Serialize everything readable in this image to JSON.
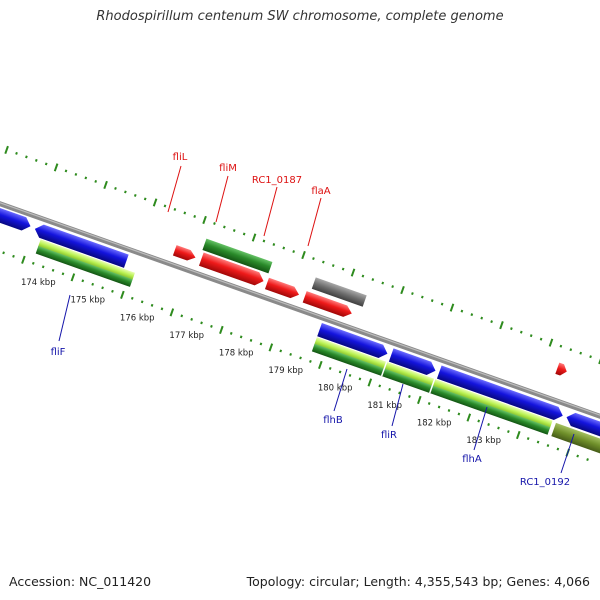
{
  "title": "Rhodospirillum centenum SW chromosome, complete genome",
  "footer": {
    "accession": "Accession: NC_011420",
    "topology": "Topology: circular; Length: 4,355,543 bp; Genes: 4,066"
  },
  "colors": {
    "backbone": "#8a8a8a",
    "tick_green": "#2e8b1e",
    "cds_red": "#ee1a1a",
    "gene_blue": "#1414dd",
    "gene_darkgreen": "#2a8a2a",
    "gene_lightgreen": "#b8f050",
    "gene_gray": "#6e6e6e",
    "gene_olive": "#6f8f2a",
    "label_red": "#dd1111",
    "label_blue": "#1515aa"
  },
  "gene_labels_top": [
    "fliL",
    "fliM",
    "RC1_0187",
    "flaA"
  ],
  "gene_labels_bottom": [
    "fliF",
    "flhB",
    "fliR",
    "flhA",
    "RC1_0192"
  ],
  "kbp_ticks": [
    "174 kbp",
    "175 kbp",
    "176 kbp",
    "177 kbp",
    "178 kbp",
    "179 kbp",
    "180 kbp",
    "181 kbp",
    "182 kbp",
    "183 kbp"
  ]
}
